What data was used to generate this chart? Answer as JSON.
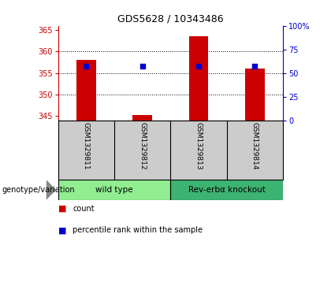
{
  "title": "GDS5628 / 10343486",
  "samples": [
    "GSM1329811",
    "GSM1329812",
    "GSM1329813",
    "GSM1329814"
  ],
  "count_values": [
    358.0,
    345.3,
    363.5,
    356.0
  ],
  "percentile_values": [
    57,
    57,
    57,
    57
  ],
  "ylim_left": [
    344,
    366
  ],
  "ylim_right": [
    0,
    100
  ],
  "yticks_left": [
    345,
    350,
    355,
    360,
    365
  ],
  "yticks_right": [
    0,
    25,
    50,
    75,
    100
  ],
  "ytick_labels_right": [
    "0",
    "25",
    "50",
    "75",
    "100%"
  ],
  "groups": [
    {
      "label": "wild type",
      "samples": [
        0,
        1
      ],
      "color": "#90ee90"
    },
    {
      "label": "Rev-erbα knockout",
      "samples": [
        2,
        3
      ],
      "color": "#3cb371"
    }
  ],
  "bar_color": "#cc0000",
  "dot_color": "#0000cc",
  "bar_width": 0.35,
  "background_color": "#ffffff",
  "plot_bg_color": "#ffffff",
  "label_area_color": "#cccccc",
  "genotype_label": "genotype/variation",
  "legend_items": [
    {
      "color": "#cc0000",
      "label": "count"
    },
    {
      "color": "#0000cc",
      "label": "percentile rank within the sample"
    }
  ]
}
